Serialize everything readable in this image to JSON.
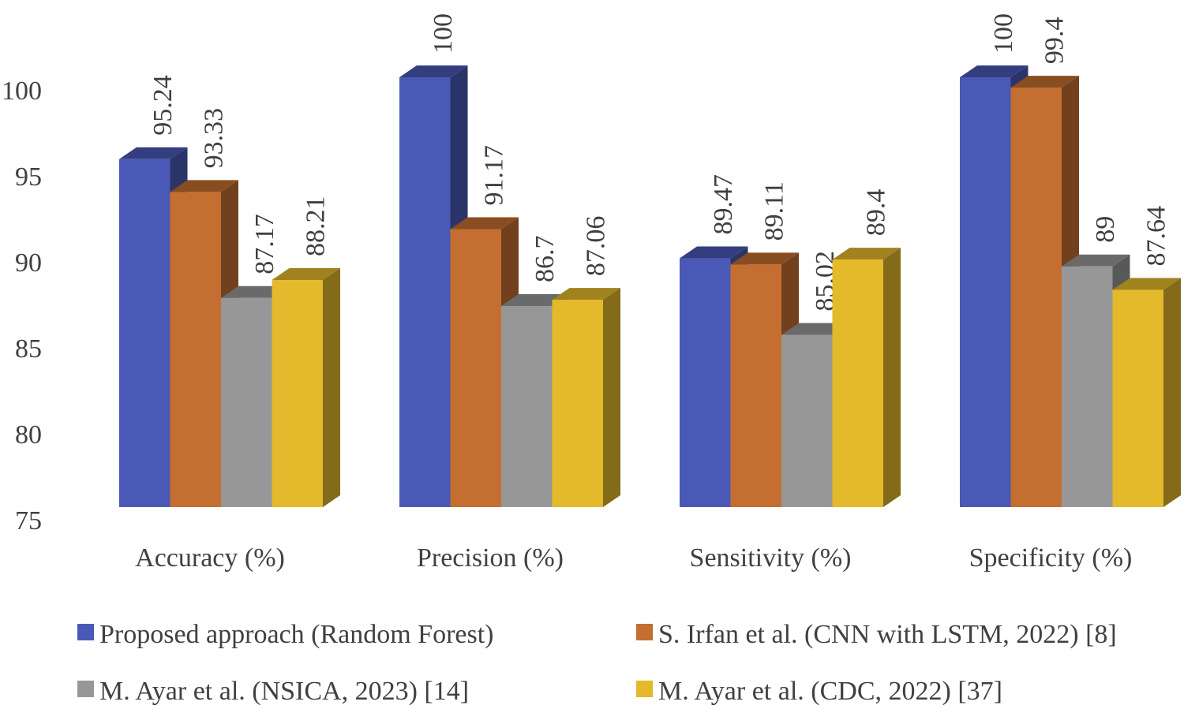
{
  "chart_data": {
    "type": "bar",
    "style": "3d-clustered-column",
    "categories": [
      "Accuracy (%)",
      "Precision (%)",
      "Sensitivity (%)",
      "Specificity (%)"
    ],
    "series": [
      {
        "name": "Proposed approach (Random Forest)",
        "color": "#4a59b5",
        "values": [
          95.24,
          100,
          89.47,
          100
        ],
        "labels": [
          "95.24",
          "100",
          "89.47",
          "100"
        ]
      },
      {
        "name": "S. Irfan et al. (CNN with LSTM, 2022) [8]",
        "color": "#c46e31",
        "values": [
          93.33,
          91.17,
          89.11,
          99.4
        ],
        "labels": [
          "93.33",
          "91.17",
          "89.11",
          "99.4"
        ]
      },
      {
        "name": "M. Ayar et al. (NSICA, 2023) [14]",
        "color": "#979797",
        "values": [
          87.17,
          86.7,
          85.02,
          89
        ],
        "labels": [
          "87.17",
          "86.7",
          "85.02",
          "89"
        ]
      },
      {
        "name": "M. Ayar et al. (CDC, 2022) [37]",
        "color": "#e4b92b",
        "values": [
          88.21,
          87.06,
          89.4,
          87.64
        ],
        "labels": [
          "88.21",
          "87.06",
          "89.4",
          "87.64"
        ]
      }
    ],
    "yticks": [
      "75",
      "80",
      "85",
      "90",
      "95",
      "100"
    ],
    "ylim": [
      75,
      100
    ],
    "grid": false,
    "legend_position": "bottom",
    "title": "",
    "xlabel": "",
    "ylabel": ""
  }
}
